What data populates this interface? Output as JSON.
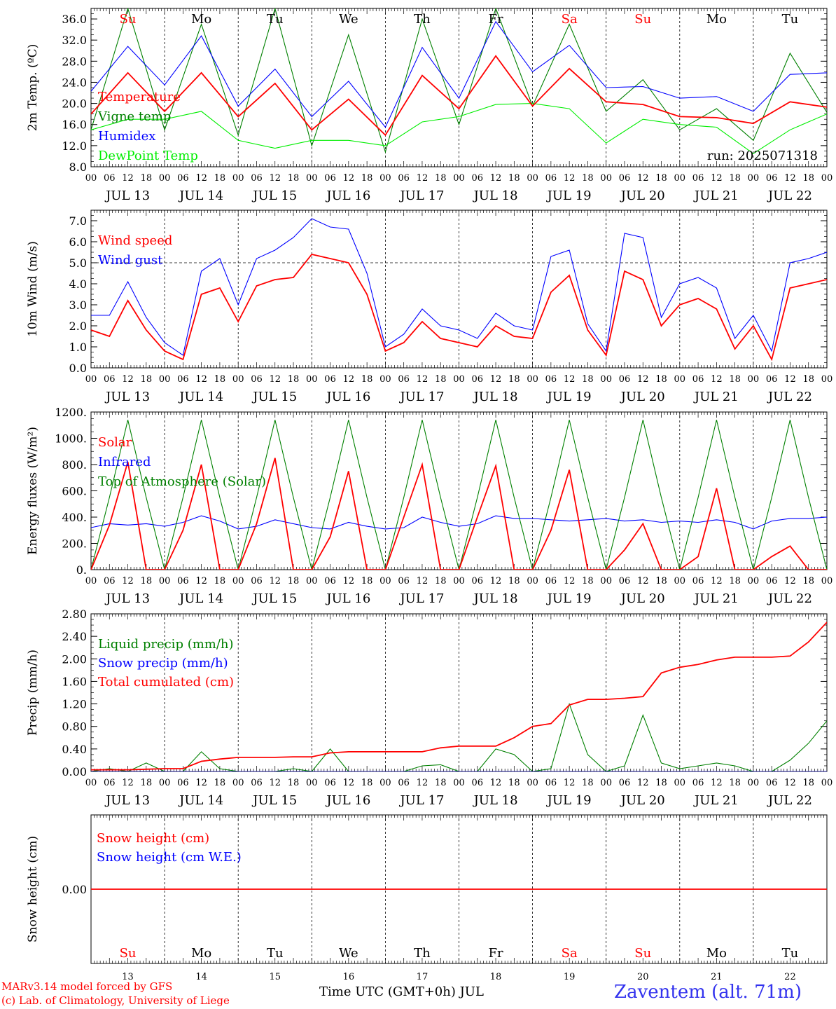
{
  "footer": {
    "model_line": "MARv3.14 model forced by GFS",
    "credit_line": "(c) Lab. of Climatology, University of Liege",
    "axis_title": "Time UTC (GMT+0h) JUL",
    "station": "Zaventem (alt. 71m)"
  },
  "colors": {
    "red": "#ff0000",
    "blue": "#0000ff",
    "green": "#008000",
    "light_green": "#00ee00",
    "black": "#000000",
    "station": "#3333ee"
  },
  "time_axis": {
    "hour_labels": [
      "00",
      "06",
      "12",
      "18"
    ],
    "dates": [
      "JUL 13",
      "JUL 14",
      "JUL 15",
      "JUL 16",
      "JUL 17",
      "JUL 18",
      "JUL 19",
      "JUL 20",
      "JUL 21",
      "JUL 22"
    ],
    "day_numbers": [
      "13",
      "14",
      "15",
      "16",
      "17",
      "18",
      "19",
      "20",
      "21",
      "22"
    ],
    "weekdays": [
      "Su",
      "Mo",
      "Tu",
      "We",
      "Th",
      "Fr",
      "Sa",
      "Su",
      "Mo",
      "Tu"
    ],
    "weekend": [
      true,
      false,
      false,
      false,
      false,
      false,
      true,
      true,
      false,
      false
    ],
    "xlim_hours": [
      0,
      240
    ]
  },
  "chart_data": [
    {
      "type": "line",
      "ylabel": "2m Temp. (ºC)",
      "ylim": [
        8,
        38
      ],
      "yticks": [
        8,
        12,
        16,
        20,
        24,
        28,
        32,
        36
      ],
      "ytick_labels": [
        "8.0",
        "12.0",
        "16.0",
        "20.0",
        "24.0",
        "28.0",
        "32.0",
        "36.0"
      ],
      "annotation": "run: 2025071318",
      "show_weekdays": true,
      "x": [
        0,
        12,
        24,
        36,
        48,
        60,
        72,
        84,
        96,
        108,
        120,
        132,
        144,
        156,
        168,
        180,
        192,
        204,
        216,
        228,
        240
      ],
      "series": [
        {
          "name": "Temperature",
          "color": "red",
          "values": [
            18,
            25.8,
            18.5,
            25.8,
            17.5,
            23.8,
            15,
            20.8,
            14,
            25.3,
            19,
            29,
            19.5,
            26.6,
            20.3,
            19.8,
            17.5,
            17.3,
            16.2,
            20.3,
            19.3
          ]
        },
        {
          "name": "Vigne temp",
          "color": "green",
          "values": [
            15,
            38,
            15,
            35,
            14,
            38,
            12,
            33,
            10.8,
            36,
            16,
            38,
            19.5,
            35,
            18.5,
            24.5,
            15,
            19,
            13,
            29.5,
            18.3
          ]
        },
        {
          "name": "Humidex",
          "color": "blue",
          "values": [
            22.3,
            30.8,
            23.5,
            32.8,
            19.5,
            26.5,
            17.5,
            24.2,
            15.5,
            30.6,
            21,
            35.5,
            26,
            31,
            23,
            23.2,
            21,
            21.3,
            18.5,
            25.5,
            25.8
          ]
        },
        {
          "name": "DewPoint Temp",
          "color": "light_green",
          "values": [
            15,
            17,
            17,
            18.5,
            13,
            11.5,
            13,
            13,
            12,
            16.5,
            17.5,
            19.8,
            20,
            19,
            12.5,
            17,
            16,
            15.5,
            10.5,
            15,
            18
          ]
        }
      ]
    },
    {
      "type": "line",
      "ylabel": "10m Wind (m/s)",
      "ylim": [
        0,
        7.5
      ],
      "yticks": [
        0,
        1,
        2,
        3,
        4,
        5,
        6,
        7
      ],
      "ytick_labels": [
        "0.0",
        "1.0",
        "2.0",
        "3.0",
        "4.0",
        "5.0",
        "6.0",
        "7.0"
      ],
      "reference_line": 5.0,
      "x": [
        0,
        6,
        12,
        18,
        24,
        30,
        36,
        42,
        48,
        54,
        60,
        66,
        72,
        78,
        84,
        90,
        96,
        102,
        108,
        114,
        120,
        126,
        132,
        138,
        144,
        150,
        156,
        162,
        168,
        174,
        180,
        186,
        192,
        198,
        204,
        210,
        216,
        222,
        228,
        234,
        240
      ],
      "series": [
        {
          "name": "Wind speed",
          "color": "red",
          "values": [
            1.8,
            1.5,
            3.2,
            1.8,
            0.8,
            0.4,
            3.5,
            3.8,
            2.2,
            3.9,
            4.2,
            4.3,
            5.4,
            5.2,
            5.0,
            3.5,
            0.8,
            1.2,
            2.2,
            1.4,
            1.2,
            1.0,
            2.0,
            1.5,
            1.4,
            3.6,
            4.4,
            1.8,
            0.6,
            4.6,
            4.2,
            2.0,
            3.0,
            3.3,
            2.8,
            0.9,
            2.0,
            0.4,
            3.8,
            4.0,
            4.2
          ]
        },
        {
          "name": "Wind gust",
          "color": "blue",
          "values": [
            2.5,
            2.5,
            4.1,
            2.4,
            1.2,
            0.6,
            4.6,
            5.2,
            3.0,
            5.2,
            5.6,
            6.2,
            7.1,
            6.7,
            6.6,
            4.5,
            1.0,
            1.6,
            2.8,
            2.0,
            1.8,
            1.4,
            2.6,
            2.0,
            1.8,
            5.3,
            5.6,
            2.1,
            0.8,
            6.4,
            6.2,
            2.4,
            4.0,
            4.3,
            3.8,
            1.4,
            2.5,
            0.8,
            5.0,
            5.2,
            5.5
          ]
        }
      ]
    },
    {
      "type": "line",
      "ylabel": "Energy fluxes (W/m²)",
      "ylim": [
        0,
        1200
      ],
      "yticks": [
        0,
        200,
        400,
        600,
        800,
        1000,
        1200
      ],
      "ytick_labels": [
        "0.",
        "200.",
        "400.",
        "600.",
        "800.",
        "1000.",
        "1200."
      ],
      "x": [
        0,
        6,
        12,
        18,
        24,
        30,
        36,
        42,
        48,
        54,
        60,
        66,
        72,
        78,
        84,
        90,
        96,
        102,
        108,
        114,
        120,
        126,
        132,
        138,
        144,
        150,
        156,
        162,
        168,
        174,
        180,
        186,
        192,
        198,
        204,
        210,
        216,
        222,
        228,
        234,
        240
      ],
      "series": [
        {
          "name": "Solar",
          "color": "red",
          "values": [
            0,
            340,
            820,
            0,
            0,
            300,
            800,
            0,
            0,
            350,
            850,
            0,
            0,
            250,
            750,
            0,
            0,
            400,
            800,
            0,
            0,
            400,
            790,
            0,
            0,
            300,
            760,
            0,
            0,
            150,
            350,
            0,
            0,
            100,
            620,
            0,
            0,
            100,
            180,
            0,
            0
          ]
        },
        {
          "name": "Infrared",
          "color": "blue",
          "values": [
            320,
            350,
            340,
            350,
            330,
            360,
            410,
            370,
            310,
            330,
            380,
            350,
            320,
            310,
            360,
            330,
            310,
            320,
            400,
            360,
            330,
            350,
            410,
            390,
            390,
            380,
            370,
            380,
            390,
            370,
            380,
            360,
            370,
            360,
            380,
            360,
            310,
            370,
            390,
            390,
            400
          ]
        },
        {
          "name": "Top of Atmosphere (Solar)",
          "color": "green",
          "values": [
            0,
            550,
            1140,
            550,
            0,
            550,
            1140,
            550,
            0,
            550,
            1140,
            550,
            0,
            550,
            1140,
            550,
            0,
            550,
            1140,
            550,
            0,
            550,
            1140,
            550,
            0,
            550,
            1140,
            550,
            0,
            550,
            1140,
            550,
            0,
            550,
            1140,
            550,
            0,
            550,
            1140,
            550,
            0
          ]
        }
      ]
    },
    {
      "type": "line",
      "ylabel": "Precip (mm/h)",
      "ylim": [
        0,
        2.8
      ],
      "yticks": [
        0,
        0.4,
        0.8,
        1.2,
        1.6,
        2.0,
        2.4,
        2.8
      ],
      "ytick_labels": [
        "0.00",
        "0.40",
        "0.80",
        "1.20",
        "1.60",
        "2.00",
        "2.40",
        "2.80"
      ],
      "x": [
        0,
        6,
        12,
        18,
        24,
        30,
        36,
        42,
        48,
        54,
        60,
        66,
        72,
        78,
        84,
        90,
        96,
        102,
        108,
        114,
        120,
        126,
        132,
        138,
        144,
        150,
        156,
        162,
        168,
        174,
        180,
        186,
        192,
        198,
        204,
        210,
        216,
        222,
        228,
        234,
        240
      ],
      "series": [
        {
          "name": "Liquid precip (mm/h)",
          "color": "green",
          "values": [
            0,
            0.05,
            0,
            0.15,
            0,
            0,
            0.35,
            0.05,
            0,
            0,
            0,
            0.05,
            0,
            0.4,
            0,
            0,
            0,
            0,
            0.1,
            0.12,
            0,
            0,
            0.4,
            0.3,
            0,
            0.05,
            1.2,
            0.3,
            0,
            0.1,
            1.0,
            0.15,
            0.05,
            0.1,
            0.15,
            0.1,
            0,
            0,
            0.2,
            0.5,
            0.9
          ]
        },
        {
          "name": "Snow precip (mm/h)",
          "color": "blue",
          "values": [
            0,
            0,
            0,
            0,
            0,
            0,
            0,
            0,
            0,
            0,
            0,
            0,
            0,
            0,
            0,
            0,
            0,
            0,
            0,
            0,
            0,
            0,
            0,
            0,
            0,
            0,
            0,
            0,
            0,
            0,
            0,
            0,
            0,
            0,
            0,
            0,
            0,
            0,
            0,
            0,
            0
          ]
        },
        {
          "name": "Total cumulated (cm)",
          "color": "red",
          "values": [
            0.03,
            0.03,
            0.03,
            0.04,
            0.05,
            0.05,
            0.18,
            0.22,
            0.25,
            0.25,
            0.25,
            0.26,
            0.26,
            0.33,
            0.35,
            0.35,
            0.35,
            0.35,
            0.35,
            0.42,
            0.45,
            0.45,
            0.45,
            0.6,
            0.8,
            0.85,
            1.18,
            1.28,
            1.28,
            1.3,
            1.33,
            1.75,
            1.85,
            1.9,
            1.98,
            2.03,
            2.03,
            2.03,
            2.05,
            2.3,
            2.65
          ]
        }
      ]
    },
    {
      "type": "line",
      "ylabel": "Snow height (cm)",
      "ylim": [
        -1,
        1
      ],
      "yticks": [
        0
      ],
      "ytick_labels": [
        "0.00"
      ],
      "show_weekdays_bottom": true,
      "x": [
        0,
        240
      ],
      "series": [
        {
          "name": "Snow height (cm)",
          "color": "red",
          "values": [
            0,
            0
          ]
        },
        {
          "name": "Snow height (cm W.E.)",
          "color": "blue",
          "values": [
            0,
            0
          ]
        }
      ]
    }
  ]
}
